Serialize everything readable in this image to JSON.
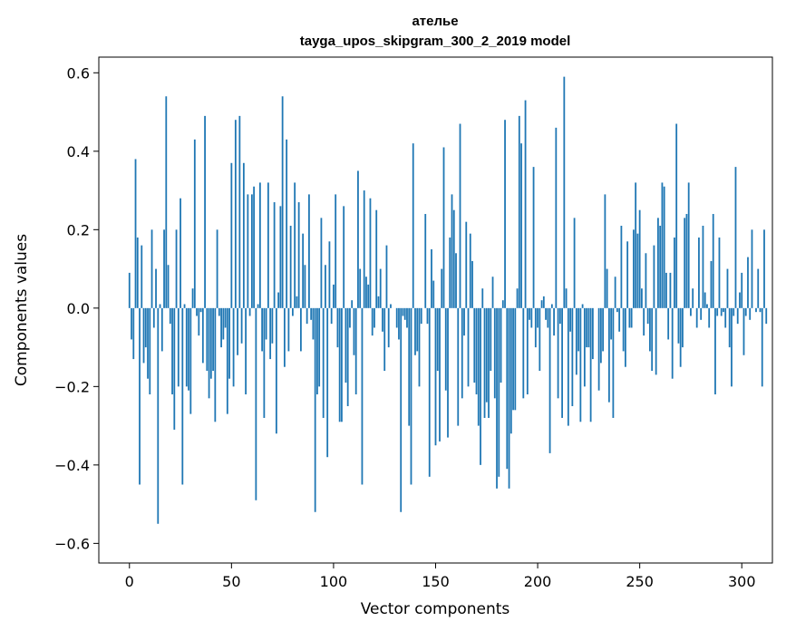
{
  "chart_data": {
    "type": "bar",
    "title": "ателье",
    "subtitle": "tayga_upos_skipgram_300_2_2019 model",
    "xlabel": "Vector components",
    "ylabel": "Components values",
    "xlim": [
      -15,
      315
    ],
    "ylim": [
      -0.65,
      0.64
    ],
    "xticks": [
      0,
      50,
      100,
      150,
      200,
      250,
      300
    ],
    "yticks": [
      -0.6,
      -0.4,
      -0.2,
      0.0,
      0.2,
      0.4,
      0.6
    ],
    "ytick_labels": [
      "−0.6",
      "−0.4",
      "−0.2",
      "0.0",
      "0.2",
      "0.4",
      "0.6"
    ],
    "bar_color": "#1f77b4",
    "grid": false,
    "legend": "none",
    "values": [
      0.09,
      -0.08,
      -0.13,
      0.38,
      0.18,
      -0.45,
      0.16,
      -0.14,
      -0.1,
      -0.18,
      -0.22,
      0.2,
      -0.05,
      0.1,
      -0.55,
      0.01,
      -0.11,
      0.2,
      0.54,
      0.11,
      -0.04,
      -0.22,
      -0.31,
      0.2,
      -0.2,
      0.28,
      -0.45,
      0.01,
      -0.2,
      -0.21,
      -0.27,
      0.05,
      0.43,
      -0.02,
      -0.07,
      -0.01,
      -0.14,
      0.49,
      -0.16,
      -0.23,
      -0.18,
      -0.16,
      -0.29,
      0.2,
      -0.02,
      -0.1,
      -0.08,
      -0.05,
      -0.27,
      -0.18,
      0.37,
      -0.2,
      0.48,
      -0.12,
      0.49,
      -0.09,
      0.37,
      -0.22,
      0.29,
      -0.02,
      0.29,
      0.31,
      -0.49,
      0.01,
      0.32,
      -0.11,
      -0.28,
      -0.08,
      0.32,
      -0.13,
      -0.09,
      0.27,
      -0.32,
      0.04,
      0.26,
      0.54,
      -0.15,
      0.43,
      -0.11,
      0.21,
      -0.02,
      0.32,
      0.03,
      0.27,
      -0.11,
      0.19,
      0.11,
      -0.04,
      0.29,
      -0.03,
      -0.08,
      -0.52,
      -0.22,
      -0.2,
      0.23,
      -0.28,
      0.11,
      -0.38,
      0.17,
      -0.04,
      0.06,
      0.29,
      -0.1,
      -0.29,
      -0.29,
      0.26,
      -0.19,
      -0.25,
      -0.05,
      0.02,
      -0.12,
      -0.22,
      0.35,
      0.1,
      -0.45,
      0.3,
      0.08,
      0.06,
      0.28,
      -0.07,
      -0.05,
      0.25,
      0.03,
      0.1,
      -0.06,
      -0.16,
      0.16,
      -0.1,
      0.01,
      0.0,
      0.0,
      -0.05,
      -0.08,
      -0.52,
      -0.02,
      -0.03,
      -0.05,
      -0.3,
      -0.45,
      0.42,
      -0.12,
      -0.11,
      -0.2,
      -0.04,
      0.0,
      0.24,
      -0.04,
      -0.43,
      0.15,
      0.07,
      -0.35,
      -0.16,
      -0.34,
      0.1,
      0.41,
      -0.21,
      -0.33,
      0.18,
      0.29,
      0.25,
      0.14,
      -0.3,
      0.47,
      -0.23,
      -0.07,
      0.22,
      -0.2,
      0.19,
      0.12,
      -0.19,
      -0.22,
      -0.3,
      -0.4,
      0.05,
      -0.28,
      -0.24,
      -0.28,
      -0.16,
      0.08,
      -0.23,
      -0.46,
      -0.43,
      -0.19,
      0.02,
      0.48,
      -0.41,
      -0.46,
      -0.32,
      -0.26,
      -0.26,
      0.05,
      0.49,
      0.42,
      -0.23,
      0.53,
      -0.22,
      -0.03,
      -0.05,
      0.36,
      -0.1,
      -0.05,
      -0.16,
      0.02,
      0.03,
      -0.03,
      -0.05,
      -0.37,
      0.01,
      -0.07,
      0.46,
      -0.23,
      -0.04,
      -0.28,
      0.59,
      0.05,
      -0.3,
      -0.06,
      -0.25,
      0.23,
      -0.17,
      -0.11,
      -0.29,
      0.01,
      -0.2,
      -0.1,
      -0.1,
      -0.29,
      -0.13,
      0.0,
      0.0,
      -0.21,
      -0.14,
      -0.11,
      0.29,
      0.1,
      -0.24,
      -0.08,
      -0.28,
      0.08,
      -0.01,
      -0.06,
      0.21,
      -0.11,
      -0.15,
      0.17,
      -0.05,
      -0.05,
      0.2,
      0.32,
      0.19,
      0.25,
      0.05,
      -0.07,
      0.14,
      -0.04,
      -0.11,
      -0.16,
      0.16,
      -0.17,
      0.23,
      0.21,
      0.32,
      0.31,
      0.09,
      -0.08,
      0.09,
      -0.18,
      0.18,
      0.47,
      -0.09,
      -0.15,
      -0.1,
      0.23,
      0.24,
      0.32,
      -0.02,
      0.05,
      0.0,
      -0.05,
      0.18,
      -0.03,
      0.21,
      0.04,
      0.01,
      -0.05,
      0.12,
      0.24,
      -0.22,
      -0.02,
      0.18,
      -0.02,
      -0.01,
      -0.05,
      0.1,
      -0.1,
      -0.2,
      -0.02,
      0.36,
      -0.04,
      0.04,
      0.09,
      -0.12,
      -0.02,
      0.13,
      -0.03,
      0.2,
      0.0,
      -0.01,
      0.1,
      -0.01,
      -0.2,
      0.2,
      -0.04,
      0.0,
      0.0
    ]
  }
}
